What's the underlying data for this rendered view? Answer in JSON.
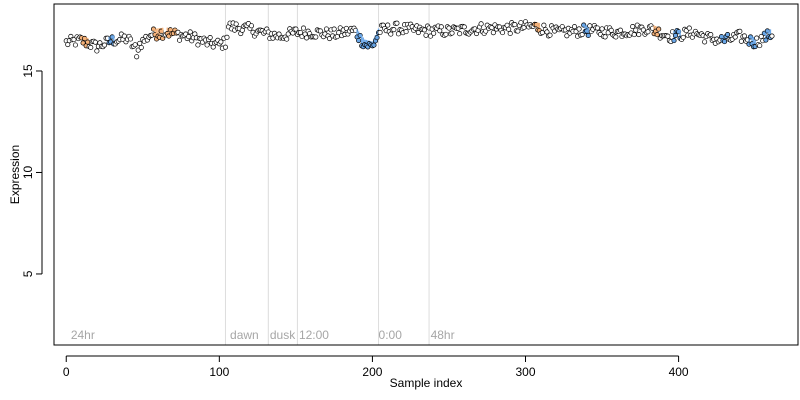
{
  "chart_data": {
    "type": "scatter",
    "title": "",
    "xlabel": "Sample index",
    "ylabel": "Expression",
    "xlim": [
      -8,
      478
    ],
    "ylim": [
      1.5,
      18.3
    ],
    "xticks": [
      0,
      100,
      200,
      300,
      400
    ],
    "yticks": [
      5,
      10,
      15
    ],
    "grid": false,
    "colors": {
      "frame": "#000000",
      "divider": "#dcdcdc",
      "annotation": "#a6a6a6",
      "point_edge": "#000000",
      "point_fill_default": "#ffffff",
      "highlight_orange": "#f5b27a",
      "highlight_blue": "#6aa7e8"
    },
    "dividers_x": [
      104,
      132,
      151,
      204,
      237
    ],
    "annotations": [
      {
        "x": 3,
        "label": "24hr"
      },
      {
        "x": 107,
        "label": "dawn"
      },
      {
        "x": 133,
        "label": "dusk"
      },
      {
        "x": 152,
        "label": "12:00"
      },
      {
        "x": 204,
        "label": "0:00"
      },
      {
        "x": 238,
        "label": "48hr"
      }
    ],
    "annotation_y": 2.0,
    "n_points": 462,
    "profile_points": [
      [
        0,
        16.4
      ],
      [
        10,
        16.5
      ],
      [
        20,
        16.2
      ],
      [
        30,
        16.5
      ],
      [
        40,
        16.6
      ],
      [
        45,
        16.1
      ],
      [
        55,
        16.8
      ],
      [
        65,
        16.9
      ],
      [
        80,
        16.7
      ],
      [
        92,
        16.4
      ],
      [
        100,
        16.3
      ],
      [
        104,
        16.4
      ],
      [
        106,
        17.2
      ],
      [
        120,
        17.05
      ],
      [
        130,
        16.85
      ],
      [
        140,
        16.7
      ],
      [
        150,
        16.9
      ],
      [
        160,
        16.9
      ],
      [
        175,
        16.8
      ],
      [
        188,
        17.0
      ],
      [
        195,
        16.3
      ],
      [
        200,
        16.2
      ],
      [
        205,
        17.0
      ],
      [
        215,
        17.1
      ],
      [
        230,
        17.0
      ],
      [
        250,
        16.95
      ],
      [
        270,
        17.1
      ],
      [
        290,
        17.1
      ],
      [
        305,
        17.2
      ],
      [
        320,
        16.9
      ],
      [
        340,
        17.0
      ],
      [
        360,
        16.9
      ],
      [
        380,
        17.1
      ],
      [
        395,
        16.7
      ],
      [
        410,
        16.9
      ],
      [
        420,
        16.6
      ],
      [
        430,
        16.5
      ],
      [
        440,
        16.7
      ],
      [
        450,
        16.4
      ],
      [
        460,
        16.8
      ],
      [
        465,
        16.6
      ]
    ],
    "highlight_ranges": [
      {
        "from": 10,
        "to": 14,
        "color": "highlight_orange"
      },
      {
        "from": 28,
        "to": 31,
        "color": "highlight_blue"
      },
      {
        "from": 57,
        "to": 63,
        "color": "highlight_orange"
      },
      {
        "from": 66,
        "to": 72,
        "color": "highlight_orange"
      },
      {
        "from": 190,
        "to": 204,
        "color": "highlight_blue"
      },
      {
        "from": 306,
        "to": 309,
        "color": "highlight_orange"
      },
      {
        "from": 338,
        "to": 341,
        "color": "highlight_blue"
      },
      {
        "from": 384,
        "to": 387,
        "color": "highlight_orange"
      },
      {
        "from": 397,
        "to": 401,
        "color": "highlight_blue"
      },
      {
        "from": 428,
        "to": 432,
        "color": "highlight_blue"
      },
      {
        "from": 446,
        "to": 450,
        "color": "highlight_blue"
      },
      {
        "from": 456,
        "to": 460,
        "color": "highlight_blue"
      }
    ]
  }
}
